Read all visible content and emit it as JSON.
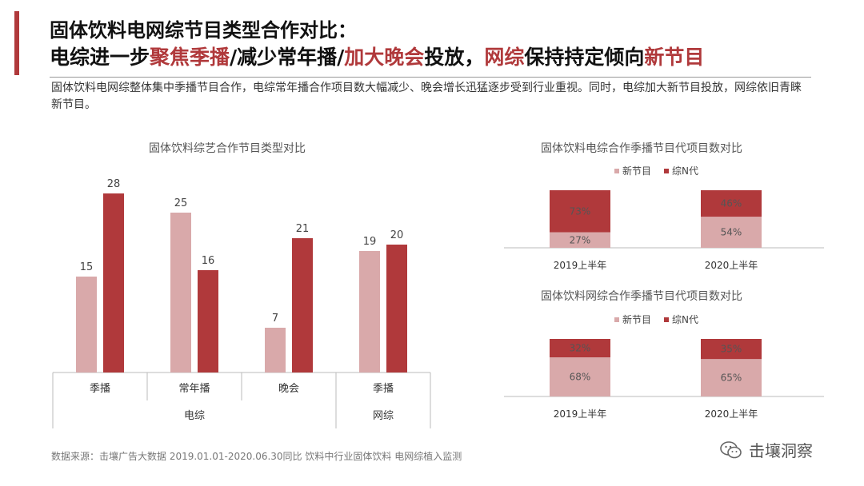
{
  "header": {
    "title_line1": "固体饮料电网综节目类型合作对比：",
    "title_line2_parts": [
      {
        "text": "电综进一步",
        "hl": false
      },
      {
        "text": "聚焦季播",
        "hl": true
      },
      {
        "text": "/减少常年播/",
        "hl": false
      },
      {
        "text": "加大晚会",
        "hl": true
      },
      {
        "text": "投放，",
        "hl": false
      },
      {
        "text": "网综",
        "hl": true
      },
      {
        "text": "保持持定倾向",
        "hl": false
      },
      {
        "text": "新节目",
        "hl": true
      }
    ],
    "description": "固体饮料电网综整体集中季播节目合作，电综常年播合作项目数大幅减少、晚会增长迅猛逐步受到行业重视。同时，电综加大新节目投放，网综依旧青睐新节目。"
  },
  "colors": {
    "accent": "#b0393b",
    "light": "#d9a9aa",
    "dark": "#b0393b"
  },
  "chart_data": [
    {
      "type": "bar",
      "title": "固体饮料综艺合作节目类型对比",
      "categories": [
        "季播",
        "常年播",
        "晚会",
        "季播"
      ],
      "groups": [
        {
          "label": "电综",
          "categories": [
            "季播",
            "常年播",
            "晚会"
          ]
        },
        {
          "label": "网综",
          "categories": [
            "季播"
          ]
        }
      ],
      "series": [
        {
          "name": "",
          "color": "#d9a9aa",
          "values": [
            15,
            25,
            7,
            19
          ]
        },
        {
          "name": "",
          "color": "#b0393b",
          "values": [
            28,
            16,
            21,
            20
          ]
        }
      ],
      "ylim": [
        0,
        30
      ],
      "grid": false
    },
    {
      "type": "bar",
      "stacked": true,
      "percent": true,
      "title": "固体饮料电综合作季播节目代项目数对比",
      "categories": [
        "2019上半年",
        "2020上半年"
      ],
      "series": [
        {
          "name": "新节目",
          "color": "#d9a9aa",
          "values": [
            27,
            54
          ]
        },
        {
          "name": "综N代",
          "color": "#b0393b",
          "values": [
            73,
            46
          ]
        }
      ],
      "legend": "top-left"
    },
    {
      "type": "bar",
      "stacked": true,
      "percent": true,
      "title": "固体饮料网综合作季播节目代项目数对比",
      "categories": [
        "2019上半年",
        "2020上半年"
      ],
      "series": [
        {
          "name": "新节目",
          "color": "#d9a9aa",
          "values": [
            68,
            65
          ]
        },
        {
          "name": "综N代",
          "color": "#b0393b",
          "values": [
            32,
            35
          ]
        }
      ],
      "legend": "top-left"
    }
  ],
  "footer": {
    "source": "数据来源：击壤广告大数据 2019.01.01-2020.06.30同比 饮料中行业固体饮料 电网综植入监测",
    "brand": "击壤洞察"
  }
}
